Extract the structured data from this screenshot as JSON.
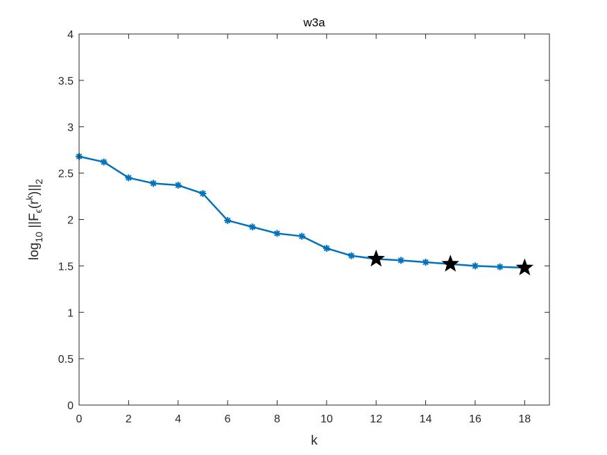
{
  "chart_data": {
    "type": "line",
    "title": "w3a",
    "xlabel": "k",
    "ylabel": {
      "prefix": "log",
      "base": "10",
      "body1": " ||F",
      "epsilon": "ϵ",
      "body2": "(r",
      "k": "k",
      "body3": ")||",
      "norm": "2"
    },
    "xlim": [
      0,
      19
    ],
    "ylim": [
      0,
      4
    ],
    "xticks": [
      "0",
      "2",
      "4",
      "6",
      "8",
      "10",
      "12",
      "14",
      "16",
      "18"
    ],
    "yticks": [
      "0",
      "0.5",
      "1",
      "1.5",
      "2",
      "2.5",
      "3",
      "3.5",
      "4"
    ],
    "grid": false,
    "series": [
      {
        "x": [
          0,
          1,
          2,
          3,
          4,
          5,
          6,
          7,
          8,
          9,
          10,
          11,
          12,
          13,
          14,
          15,
          16,
          17,
          18
        ],
        "y": [
          2.68,
          2.62,
          2.45,
          2.39,
          2.37,
          2.28,
          1.99,
          1.92,
          1.85,
          1.82,
          1.69,
          1.61,
          1.575,
          1.56,
          1.54,
          1.52,
          1.5,
          1.49,
          1.48
        ],
        "color": "#0072BD",
        "marker": "asterisk"
      }
    ],
    "highlighted_points": {
      "x": [
        12,
        15,
        18
      ],
      "y": [
        1.575,
        1.52,
        1.48
      ],
      "marker": "star",
      "color": "#000000"
    }
  }
}
